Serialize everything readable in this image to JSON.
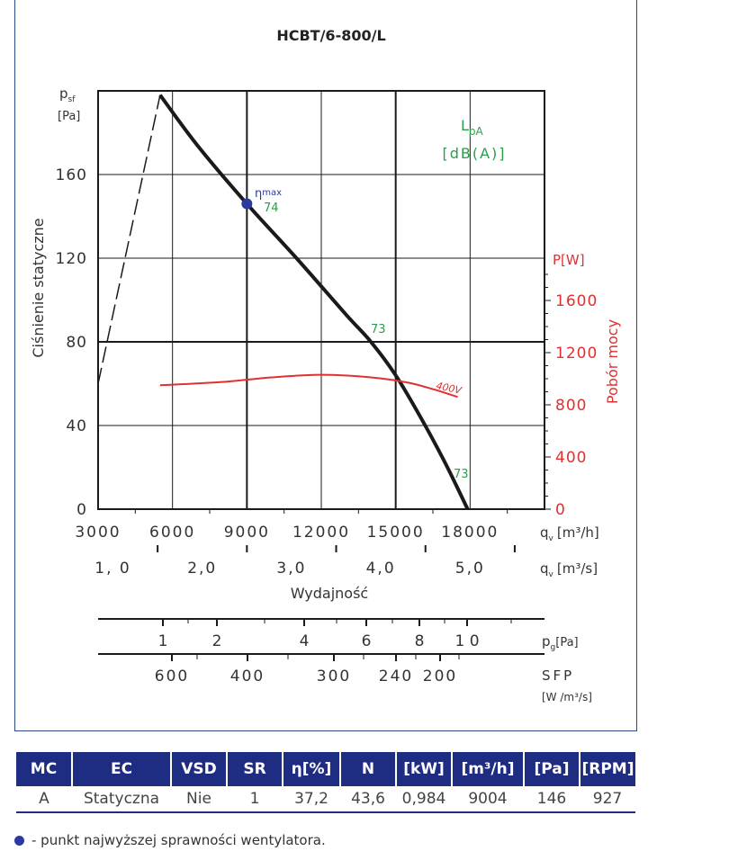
{
  "chart_data": {
    "type": "line",
    "title": "HCBT/6-800/L",
    "ylabel": "Ciśnienie statyczne",
    "y_symbol": "p",
    "y_symbol_sub": "sf",
    "y_unit": "[Pa]",
    "ylim": [
      0,
      200
    ],
    "y_ticks": [
      "0",
      "40",
      "80",
      "120",
      "160"
    ],
    "xlabel": "Wydajność",
    "x_m3h_label": "q",
    "x_m3h_unit": "[m³/h]",
    "xlim_m3h": [
      3000,
      21000
    ],
    "x_ticks_m3h": [
      "3000",
      "6000",
      "9000",
      "12000",
      "15000",
      "18000"
    ],
    "x_m3s_label": "q",
    "x_m3s_unit": "[m³/s]",
    "x_ticks_m3s": [
      "1, 0",
      "2,0",
      "3,0",
      "4,0",
      "5,0"
    ],
    "sound_label": "L",
    "sound_label_sub": "pA",
    "sound_unit": "[dB(A)]",
    "power_axis": {
      "label": "Pobór mocy",
      "unit": "P[W]",
      "ticks": [
        "0",
        "400",
        "800",
        "1200",
        "1600"
      ]
    },
    "pg_axis": {
      "label": "p",
      "label_sub": "g",
      "unit": "[Pa]",
      "ticks": [
        "1",
        "2",
        "4",
        "6",
        "8",
        "1 0"
      ]
    },
    "sfp_axis": {
      "label": "SFP",
      "unit": "[W /m³/s]",
      "ticks": [
        "600",
        "400",
        "300",
        "240",
        "200"
      ]
    },
    "series": [
      {
        "name": "",
        "role": "pressure",
        "color": "#1a1a1a",
        "x": [
          5500,
          7000,
          9000,
          11000,
          13000,
          14000,
          15000,
          16000,
          17000,
          17900
        ],
        "y": [
          198,
          174,
          146,
          120,
          93,
          80,
          64,
          44,
          22,
          0
        ]
      },
      {
        "name": "",
        "role": "stall-dashed",
        "color": "#1a1a1a",
        "x": [
          3000,
          5500
        ],
        "y": [
          60,
          198
        ]
      },
      {
        "name": "400V",
        "role": "power",
        "color": "#e03030",
        "x": [
          5500,
          8000,
          10000,
          12000,
          14000,
          15500,
          16500,
          17500
        ],
        "p_w": [
          950,
          975,
          1010,
          1030,
          1010,
          970,
          920,
          860
        ]
      }
    ],
    "annotations": [
      {
        "label": "η",
        "label_sub": "max",
        "value": "74",
        "x": 9000,
        "y": 146
      },
      {
        "label": "73",
        "x": 14000,
        "y": 80
      },
      {
        "label": "73",
        "x": 17900,
        "y": 18
      }
    ]
  },
  "table": {
    "headers": [
      "MC",
      "EC",
      "VSD",
      "SR",
      "η[%]",
      "N",
      "[kW]",
      "[m³/h]",
      "[Pa]",
      "[RPM]"
    ],
    "row": [
      "A",
      "Statyczna",
      "Nie",
      "1",
      "37,2",
      "43,6",
      "0,984",
      "9004",
      "146",
      "927"
    ]
  },
  "legend_note": "- punkt najwyższej sprawności wentylatora.",
  "colors": {
    "pressure": "#1a1a1a",
    "power": "#e03030",
    "sound": "#2a9d4a",
    "eta_point": "#2a3aa0",
    "header_bg": "#1e2d82"
  }
}
